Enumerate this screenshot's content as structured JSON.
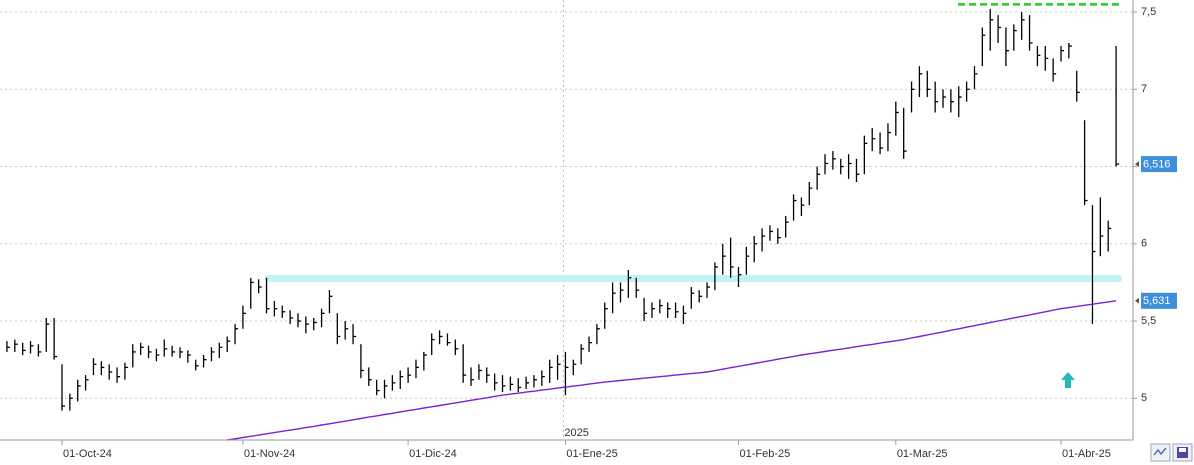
{
  "chart_data": {
    "type": "ohlc",
    "categories": [
      null,
      null,
      null,
      null,
      null,
      null,
      null,
      "01-Oct-24",
      null,
      null,
      null,
      null,
      null,
      null,
      null,
      null,
      null,
      null,
      null,
      null,
      null,
      null,
      null,
      null,
      null,
      null,
      null,
      null,
      null,
      null,
      "01-Nov-24",
      null,
      null,
      null,
      null,
      null,
      null,
      null,
      null,
      null,
      null,
      null,
      null,
      null,
      null,
      null,
      null,
      null,
      null,
      null,
      null,
      "01-Dic-24",
      null,
      null,
      null,
      null,
      null,
      null,
      null,
      null,
      null,
      null,
      null,
      null,
      null,
      null,
      null,
      null,
      null,
      null,
      null,
      "01-Ene-25",
      null,
      null,
      null,
      null,
      null,
      null,
      null,
      null,
      null,
      null,
      null,
      null,
      null,
      null,
      null,
      null,
      null,
      null,
      null,
      null,
      null,
      "01-Feb-25",
      null,
      null,
      null,
      null,
      null,
      null,
      null,
      null,
      null,
      null,
      null,
      null,
      null,
      null,
      null,
      null,
      null,
      null,
      null,
      "01-Mar-25",
      null,
      null,
      null,
      null,
      null,
      null,
      null,
      null,
      null,
      null,
      null,
      null,
      null,
      null,
      null,
      null,
      null,
      null,
      null,
      null,
      "01-Abr-25",
      null,
      null,
      null,
      null,
      null,
      null,
      null
    ],
    "high": [
      5.37,
      5.38,
      5.36,
      5.37,
      5.35,
      5.52,
      5.52,
      5.22,
      5.03,
      5.12,
      5.15,
      5.26,
      5.24,
      5.22,
      5.2,
      5.23,
      5.35,
      5.36,
      5.34,
      5.32,
      5.38,
      5.34,
      5.33,
      5.31,
      5.25,
      5.28,
      5.33,
      5.36,
      5.4,
      5.48,
      5.6,
      5.78,
      5.77,
      5.78,
      5.63,
      5.6,
      5.57,
      5.55,
      5.53,
      5.52,
      5.58,
      5.7,
      5.55,
      5.5,
      5.48,
      5.35,
      5.2,
      5.12,
      5.12,
      5.15,
      5.18,
      5.2,
      5.25,
      5.3,
      5.42,
      5.44,
      5.42,
      5.38,
      5.35,
      5.2,
      5.22,
      5.2,
      5.16,
      5.15,
      5.14,
      5.13,
      5.14,
      5.15,
      5.18,
      5.25,
      5.28,
      5.3,
      5.25,
      5.35,
      5.4,
      5.48,
      5.62,
      5.75,
      5.75,
      5.83,
      5.78,
      5.65,
      5.62,
      5.64,
      5.62,
      5.62,
      5.6,
      5.72,
      5.7,
      5.75,
      5.88,
      6.0,
      6.04,
      5.85,
      5.98,
      6.05,
      6.1,
      6.12,
      6.1,
      6.18,
      6.32,
      6.3,
      6.4,
      6.5,
      6.58,
      6.6,
      6.55,
      6.58,
      6.55,
      6.7,
      6.75,
      6.72,
      6.78,
      6.92,
      6.88,
      7.05,
      7.15,
      7.12,
      7.05,
      7.0,
      7.0,
      7.02,
      7.05,
      7.15,
      7.4,
      7.52,
      7.48,
      7.4,
      7.42,
      7.5,
      7.48,
      7.28,
      7.28,
      7.2,
      7.28,
      7.3,
      7.12,
      6.8,
      6.25,
      6.3,
      6.15,
      7.28
    ],
    "low": [
      5.3,
      5.3,
      5.28,
      5.29,
      5.27,
      5.3,
      5.25,
      4.92,
      4.92,
      4.98,
      5.05,
      5.15,
      5.15,
      5.12,
      5.1,
      5.12,
      5.2,
      5.28,
      5.26,
      5.24,
      5.27,
      5.27,
      5.26,
      5.23,
      5.18,
      5.2,
      5.24,
      5.26,
      5.3,
      5.35,
      5.45,
      5.58,
      5.68,
      5.55,
      5.53,
      5.52,
      5.48,
      5.46,
      5.42,
      5.44,
      5.46,
      5.55,
      5.35,
      5.38,
      5.35,
      5.13,
      5.08,
      5.02,
      5.0,
      5.05,
      5.06,
      5.1,
      5.13,
      5.18,
      5.28,
      5.35,
      5.34,
      5.28,
      5.1,
      5.08,
      5.12,
      5.1,
      5.05,
      5.04,
      5.05,
      5.04,
      5.06,
      5.07,
      5.08,
      5.1,
      5.12,
      5.02,
      5.15,
      5.22,
      5.3,
      5.35,
      5.45,
      5.55,
      5.62,
      5.65,
      5.65,
      5.5,
      5.52,
      5.55,
      5.52,
      5.52,
      5.48,
      5.58,
      5.62,
      5.65,
      5.7,
      5.8,
      5.78,
      5.72,
      5.8,
      5.88,
      5.95,
      6.02,
      6.0,
      6.04,
      6.15,
      6.18,
      6.25,
      6.35,
      6.45,
      6.48,
      6.45,
      6.42,
      6.4,
      6.45,
      6.6,
      6.58,
      6.6,
      6.7,
      6.55,
      6.85,
      6.95,
      6.95,
      6.85,
      6.88,
      6.85,
      6.82,
      6.92,
      7.0,
      7.15,
      7.25,
      7.3,
      7.15,
      7.25,
      7.32,
      7.25,
      7.15,
      7.12,
      7.05,
      7.18,
      7.2,
      6.92,
      6.25,
      5.48,
      5.92,
      5.95,
      6.5
    ],
    "close": [
      5.33,
      5.35,
      5.31,
      5.34,
      5.3,
      5.48,
      5.27,
      4.95,
      5.0,
      5.08,
      5.12,
      5.22,
      5.2,
      5.17,
      5.14,
      5.2,
      5.3,
      5.33,
      5.3,
      5.28,
      5.32,
      5.3,
      5.3,
      5.28,
      5.21,
      5.25,
      5.3,
      5.33,
      5.37,
      5.45,
      5.55,
      5.75,
      5.72,
      5.58,
      5.58,
      5.56,
      5.52,
      5.5,
      5.48,
      5.49,
      5.55,
      5.66,
      5.4,
      5.45,
      5.4,
      5.18,
      5.12,
      5.05,
      5.08,
      5.1,
      5.14,
      5.15,
      5.2,
      5.28,
      5.38,
      5.4,
      5.36,
      5.32,
      5.15,
      5.12,
      5.18,
      5.15,
      5.1,
      5.08,
      5.09,
      5.07,
      5.1,
      5.12,
      5.14,
      5.2,
      5.22,
      5.2,
      5.22,
      5.32,
      5.36,
      5.45,
      5.58,
      5.68,
      5.7,
      5.78,
      5.7,
      5.55,
      5.58,
      5.6,
      5.58,
      5.56,
      5.55,
      5.68,
      5.66,
      5.72,
      5.85,
      5.92,
      5.85,
      5.8,
      5.92,
      6.0,
      6.05,
      6.08,
      6.04,
      6.14,
      6.28,
      6.25,
      6.36,
      6.45,
      6.52,
      6.55,
      6.5,
      6.52,
      6.45,
      6.65,
      6.68,
      6.62,
      6.72,
      6.85,
      6.6,
      7.0,
      7.1,
      7.0,
      6.92,
      6.95,
      6.92,
      6.95,
      7.0,
      7.1,
      7.35,
      7.45,
      7.4,
      7.25,
      7.38,
      7.45,
      7.3,
      7.22,
      7.2,
      7.1,
      7.25,
      7.28,
      6.98,
      6.28,
      5.95,
      6.05,
      6.1,
      6.516
    ],
    "color": "#000000",
    "moving_average": {
      "color": "#7b22d4",
      "values": [
        null,
        null,
        null,
        null,
        null,
        null,
        null,
        null,
        null,
        null,
        null,
        null,
        null,
        null,
        null,
        null,
        null,
        null,
        null,
        null,
        null,
        null,
        null,
        null,
        null,
        null,
        null,
        null,
        4.73,
        4.738,
        4.746,
        4.754,
        4.762,
        4.77,
        4.778,
        4.786,
        4.794,
        4.802,
        4.81,
        4.818,
        4.827,
        4.835,
        4.844,
        4.852,
        4.861,
        4.869,
        4.878,
        4.886,
        4.895,
        4.903,
        4.912,
        4.92,
        4.928,
        4.937,
        4.945,
        4.953,
        4.962,
        4.97,
        4.978,
        4.987,
        4.995,
        5.003,
        5.012,
        5.02,
        5.027,
        5.033,
        5.04,
        5.046,
        5.053,
        5.059,
        5.066,
        5.072,
        5.079,
        5.085,
        5.092,
        5.098,
        5.105,
        5.11,
        5.115,
        5.12,
        5.125,
        5.13,
        5.135,
        5.14,
        5.145,
        5.15,
        5.155,
        5.16,
        5.165,
        5.17,
        5.179,
        5.188,
        5.198,
        5.207,
        5.216,
        5.225,
        5.234,
        5.243,
        5.253,
        5.262,
        5.271,
        5.28,
        5.288,
        5.295,
        5.303,
        5.311,
        5.318,
        5.326,
        5.334,
        5.342,
        5.349,
        5.357,
        5.365,
        5.372,
        5.38,
        5.39,
        5.4,
        5.41,
        5.42,
        5.43,
        5.44,
        5.45,
        5.46,
        5.47,
        5.48,
        5.49,
        5.5,
        5.51,
        5.52,
        5.53,
        5.54,
        5.55,
        5.56,
        5.57,
        5.58,
        5.587,
        5.595,
        5.602,
        5.609,
        5.616,
        5.624,
        5.631
      ]
    },
    "levels": [
      {
        "value": 5.775,
        "color": "#c2f4f7"
      },
      {
        "value": 7.55,
        "color": "#22cc22",
        "dashed": true
      }
    ],
    "price_labels": [
      {
        "value": 6.516,
        "label": "6,516",
        "color": "#3d8fd9"
      },
      {
        "value": 5.631,
        "label": "5,631",
        "color": "#3d8fd9"
      }
    ],
    "annotations": [
      {
        "text": "2025",
        "index": 71
      }
    ],
    "ylim": [
      4.73,
      7.578
    ],
    "yticks": [
      5,
      {
        "value": 5.5,
        "label": "5,5"
      },
      6,
      {
        "value": 6.5,
        "label": "6,5"
      },
      7,
      {
        "value": 7.5,
        "label": "7,5"
      }
    ],
    "grid": true
  }
}
